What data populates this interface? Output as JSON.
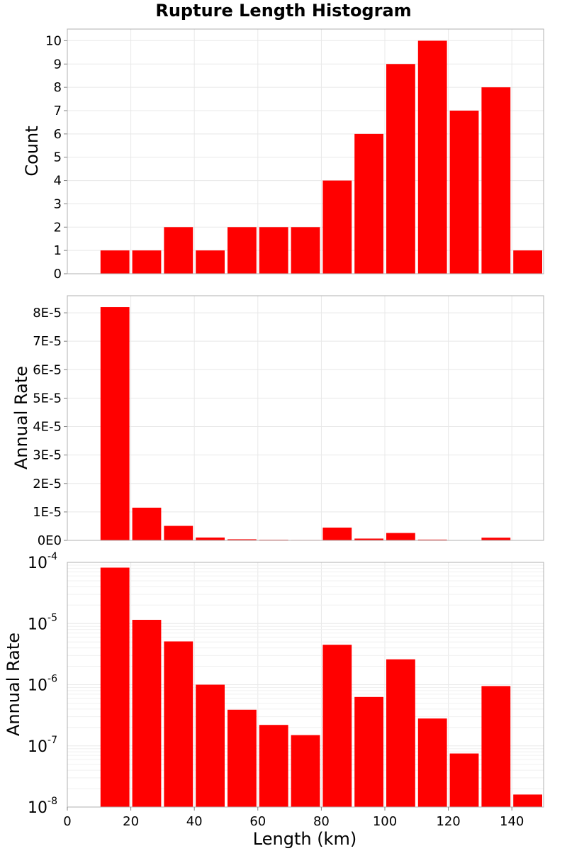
{
  "title": "Rupture Length Histogram",
  "colors": {
    "bar": "#ff0000",
    "frame": "#b0b0b0",
    "grid": "#e8e8e8"
  },
  "chart_data": [
    {
      "type": "bar",
      "ylabel": "Count",
      "bin_width": 10,
      "bin_starts": [
        10,
        20,
        30,
        40,
        50,
        60,
        70,
        80,
        90,
        100,
        110,
        120,
        130,
        140
      ],
      "values": [
        1,
        1,
        2,
        1,
        2,
        2,
        2,
        4,
        6,
        9,
        10,
        7,
        8,
        1
      ],
      "xlim": [
        0,
        150
      ],
      "ylim": [
        0,
        10.5
      ],
      "yticks": [
        0,
        1,
        2,
        3,
        4,
        5,
        6,
        7,
        8,
        9,
        10
      ],
      "ytick_labels": [
        "0",
        "1",
        "2",
        "3",
        "4",
        "5",
        "6",
        "7",
        "8",
        "9",
        "10"
      ],
      "grid": true
    },
    {
      "type": "bar",
      "ylabel": "Annual Rate",
      "bin_width": 10,
      "bin_starts": [
        10,
        20,
        30,
        40,
        50,
        60,
        70,
        80,
        90,
        100,
        110,
        120,
        130,
        140
      ],
      "values": [
        8.2e-05,
        1.15e-05,
        5.1e-06,
        1e-06,
        3.9e-07,
        2.2e-07,
        1.5e-07,
        4.5e-06,
        6.3e-07,
        2.6e-06,
        2.8e-07,
        7.5e-08,
        9.5e-07,
        1.6e-08
      ],
      "xlim": [
        0,
        150
      ],
      "ylim": [
        0,
        8.6e-05
      ],
      "yticks": [
        0,
        1e-05,
        2e-05,
        3e-05,
        4e-05,
        5e-05,
        6e-05,
        7e-05,
        8e-05
      ],
      "ytick_labels": [
        "0E0",
        "1E-5",
        "2E-5",
        "3E-5",
        "4E-5",
        "5E-5",
        "6E-5",
        "7E-5",
        "8E-5"
      ],
      "grid": true
    },
    {
      "type": "bar",
      "ylabel": "Annual Rate",
      "xlabel": "Length (km)",
      "yscale": "log",
      "bin_width": 10,
      "bin_starts": [
        10,
        20,
        30,
        40,
        50,
        60,
        70,
        80,
        90,
        100,
        110,
        120,
        130,
        140
      ],
      "values": [
        8.2e-05,
        1.15e-05,
        5.1e-06,
        1e-06,
        3.9e-07,
        2.2e-07,
        1.5e-07,
        4.5e-06,
        6.3e-07,
        2.6e-06,
        2.8e-07,
        7.5e-08,
        9.5e-07,
        1.6e-08
      ],
      "xlim": [
        0,
        150
      ],
      "ylim": [
        1e-08,
        0.0001
      ],
      "xticks": [
        0,
        20,
        40,
        60,
        80,
        100,
        120,
        140
      ],
      "xtick_labels": [
        "0",
        "20",
        "40",
        "60",
        "80",
        "100",
        "120",
        "140"
      ],
      "ytick_exponents": [
        "-8",
        "-7",
        "-6",
        "-5",
        "-4"
      ],
      "ytick_base": "10",
      "grid": true
    }
  ]
}
